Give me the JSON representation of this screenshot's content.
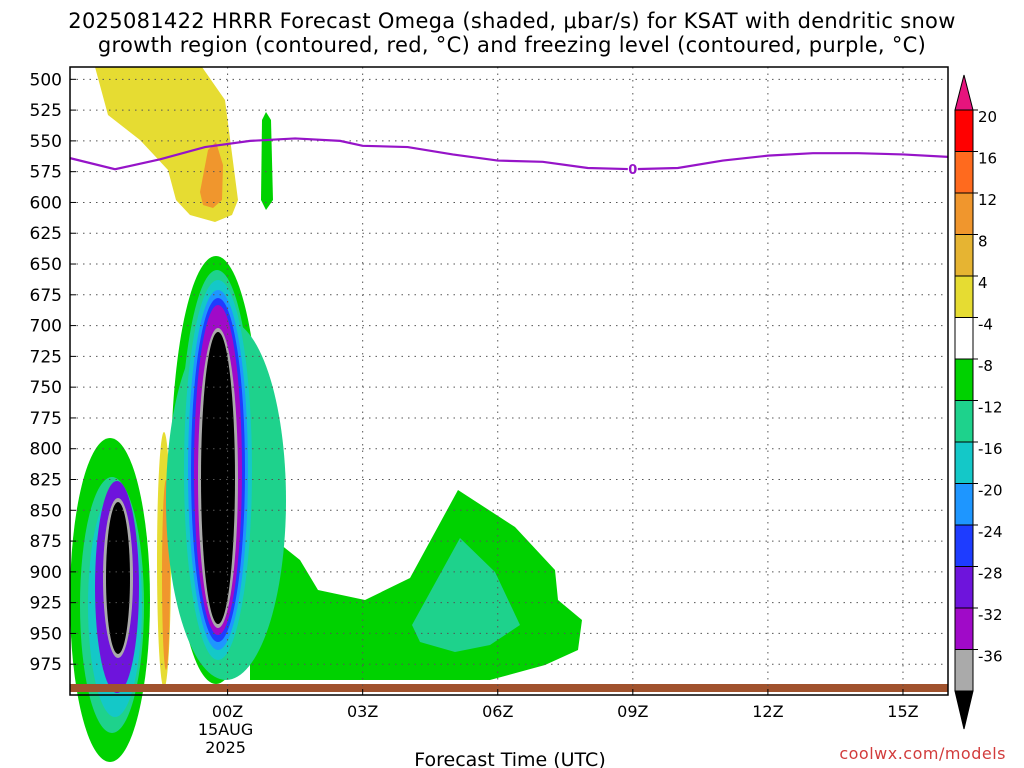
{
  "title_line1": "2025081422 HRRR Forecast Omega (shaded, μbar/s) for KSAT with dendritic snow",
  "title_line2": "growth region (contoured, red, °C) and freezing level (contoured, purple, °C)",
  "credit": "coolwx.com/models",
  "chart_data": {
    "type": "contour-time-height",
    "title": "2025081422 HRRR Forecast Omega (shaded, μbar/s) for KSAT with dendritic snow growth region (contoured, red, °C) and freezing level (contoured, purple, °C)",
    "xlabel": "Forecast Time (UTC)",
    "ylabel": "",
    "x_range_hours": [
      -3.5,
      16.0
    ],
    "y_range_hPa": [
      1000,
      490
    ],
    "y_ticks": [
      500,
      525,
      550,
      575,
      600,
      625,
      650,
      675,
      700,
      725,
      750,
      775,
      800,
      825,
      850,
      875,
      900,
      925,
      950,
      975
    ],
    "x_ticks": [
      {
        "hour": 0,
        "label": "00Z",
        "sub1": "15AUG",
        "sub2": "2025"
      },
      {
        "hour": 3,
        "label": "03Z"
      },
      {
        "hour": 6,
        "label": "06Z"
      },
      {
        "hour": 9,
        "label": "09Z"
      },
      {
        "hour": 12,
        "label": "12Z"
      },
      {
        "hour": 15,
        "label": "15Z"
      }
    ],
    "grid": true,
    "colorbar": {
      "levels": [
        20,
        16,
        12,
        8,
        4,
        -4,
        -8,
        -12,
        -16,
        -20,
        -24,
        -28,
        -32,
        -36
      ],
      "colors": [
        "#ff0000",
        "#ff6a1e",
        "#f0962d",
        "#e6b432",
        "#e6dc32",
        "#ffffff",
        "#00d200",
        "#1ed28c",
        "#14c8c8",
        "#1e96ff",
        "#1e3cff",
        "#6e14dc",
        "#a00ac8",
        "#aaaaaa"
      ],
      "over_color": "#e6147d",
      "under_color": "#000000"
    },
    "freezing_level": {
      "label": "0",
      "color": "#9614c8",
      "points": [
        [
          -3.5,
          564
        ],
        [
          -2.5,
          573
        ],
        [
          -1.5,
          565
        ],
        [
          -0.5,
          555
        ],
        [
          0.5,
          550
        ],
        [
          1.5,
          548
        ],
        [
          2.5,
          550
        ],
        [
          3.0,
          554
        ],
        [
          4.0,
          555
        ],
        [
          5.0,
          561
        ],
        [
          6.0,
          566
        ],
        [
          7.0,
          567
        ],
        [
          8.0,
          572
        ],
        [
          9.0,
          573
        ],
        [
          10.0,
          572
        ],
        [
          11.0,
          566
        ],
        [
          12.0,
          562
        ],
        [
          13.0,
          560
        ],
        [
          14.0,
          560
        ],
        [
          15.0,
          561
        ],
        [
          16.0,
          563
        ]
      ]
    }
  }
}
